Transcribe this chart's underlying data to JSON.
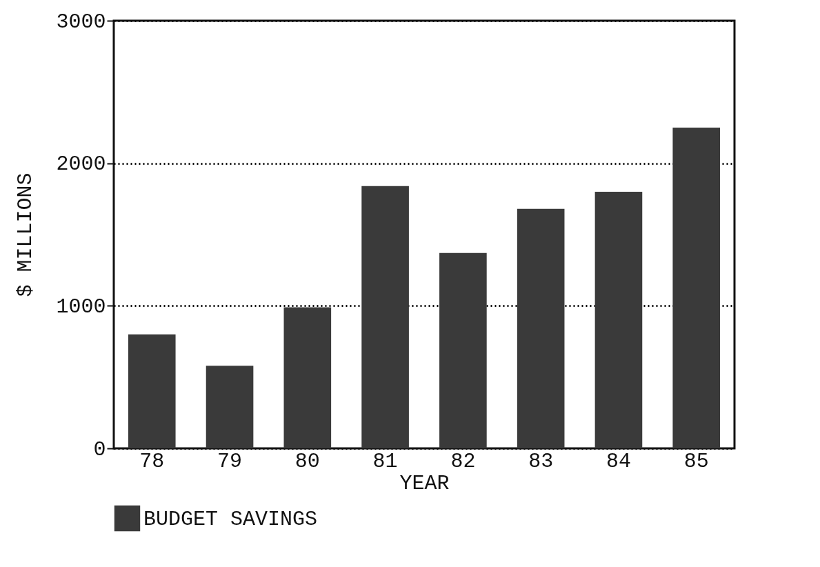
{
  "chart_data": {
    "type": "bar",
    "xlabel": "YEAR",
    "ylabel": "$ MILLIONS",
    "categories": [
      "78",
      "79",
      "80",
      "81",
      "82",
      "83",
      "84",
      "85"
    ],
    "series": [
      {
        "name": "BUDGET SAVINGS",
        "color": "#3a3a3a",
        "values": [
          800,
          580,
          990,
          1840,
          1370,
          1680,
          1800,
          2250
        ]
      }
    ],
    "ylim": [
      0,
      3000
    ],
    "yticks": [
      0,
      1000,
      2000,
      3000
    ],
    "grid": "y",
    "legend": "bottom left"
  }
}
